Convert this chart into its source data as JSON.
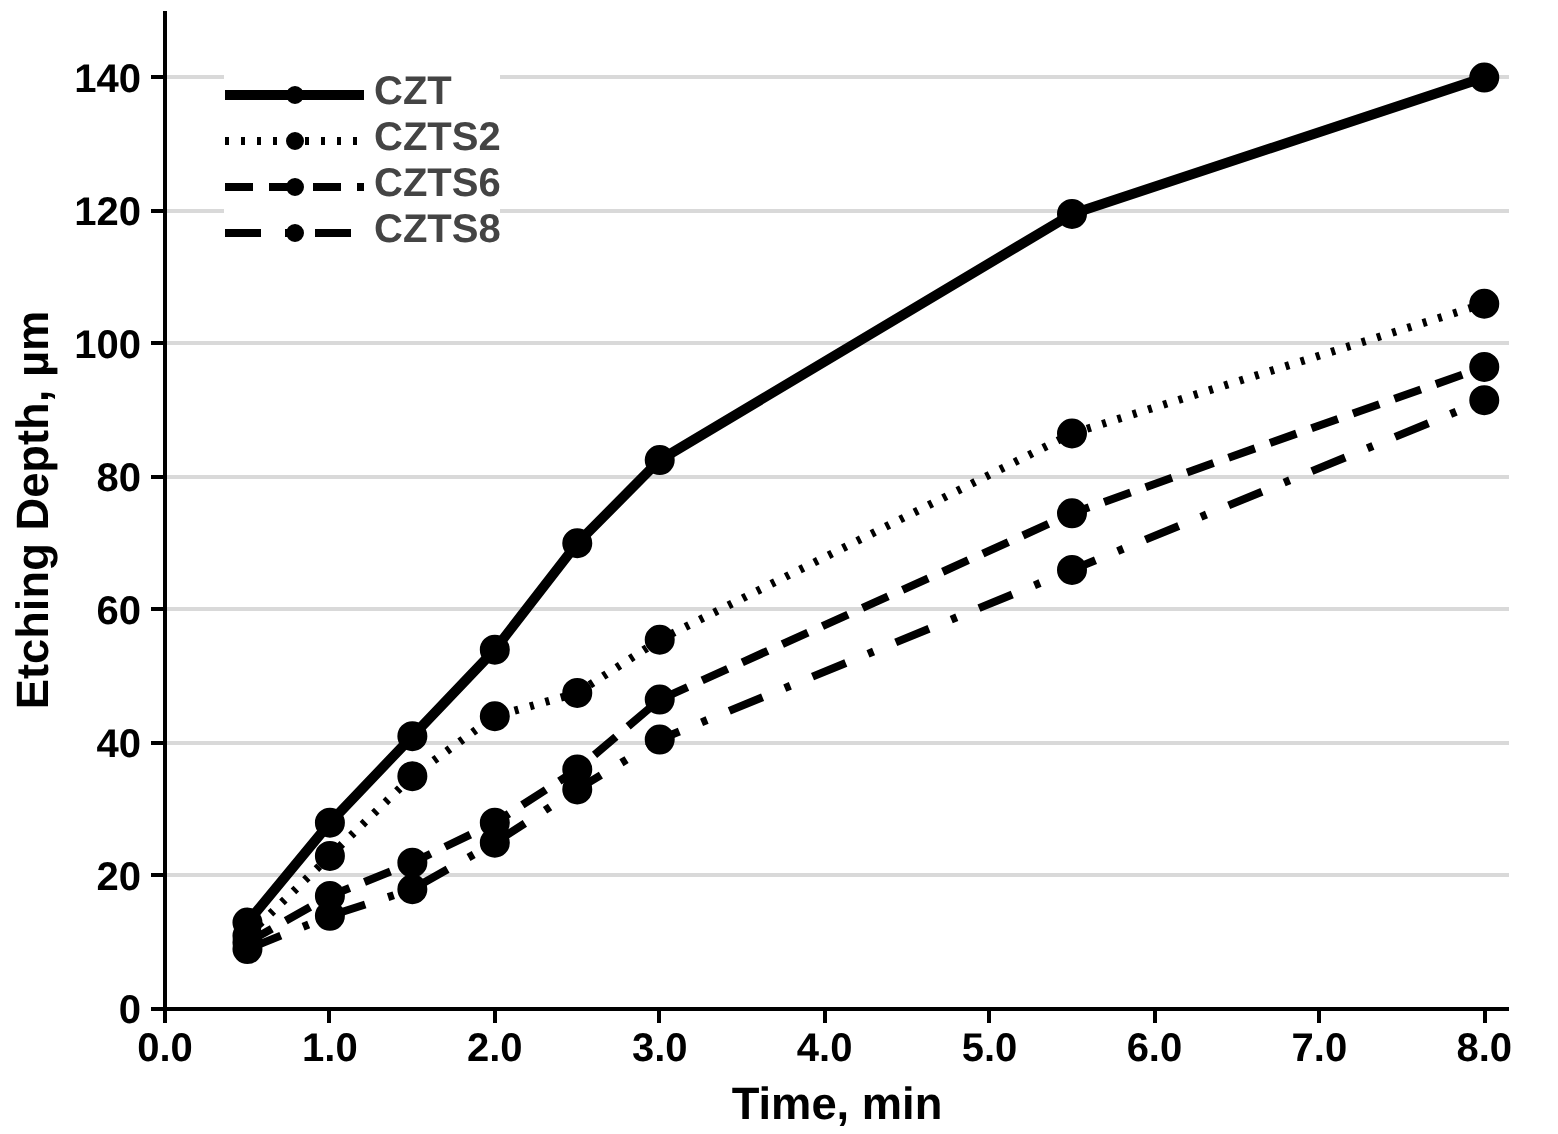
{
  "chart_data": {
    "type": "line",
    "xlabel": "Time, min",
    "ylabel": "Etching Depth, µm",
    "x": [
      0.5,
      1.0,
      1.5,
      2.0,
      2.5,
      3.0,
      5.5,
      8.0
    ],
    "series": [
      {
        "name": "CZT",
        "color": "#000000",
        "line_style": "solid",
        "values": [
          13,
          28,
          41,
          54,
          70,
          82.5,
          119.5,
          140
        ]
      },
      {
        "name": "CZTS2",
        "color": "#000000",
        "line_style": "dotted",
        "values": [
          11,
          23,
          35,
          44,
          47.5,
          55.5,
          86.5,
          106
        ]
      },
      {
        "name": "CZTS6",
        "color": "#000000",
        "line_style": "dashed",
        "values": [
          10,
          17,
          22,
          28,
          36,
          46.5,
          74.5,
          96.5
        ]
      },
      {
        "name": "CZTS8",
        "color": "#000000",
        "line_style": "dashdot",
        "values": [
          9,
          14,
          18,
          25,
          33,
          40.5,
          66,
          91.5
        ]
      }
    ],
    "xlim": [
      0,
      8.15
    ],
    "ylim": [
      0,
      150
    ],
    "xticks": [
      {
        "value": 0,
        "label": "0.0"
      },
      {
        "value": 1,
        "label": "1.0"
      },
      {
        "value": 2,
        "label": "2.0"
      },
      {
        "value": 3,
        "label": "3.0"
      },
      {
        "value": 4,
        "label": "4.0"
      },
      {
        "value": 5,
        "label": "5.0"
      },
      {
        "value": 6,
        "label": "6.0"
      },
      {
        "value": 7,
        "label": "7.0"
      },
      {
        "value": 8,
        "label": "8.0"
      }
    ],
    "yticks": [
      0,
      20,
      40,
      60,
      80,
      100,
      120,
      140
    ],
    "grid": "y",
    "legend": "top left",
    "marker": "circle"
  }
}
